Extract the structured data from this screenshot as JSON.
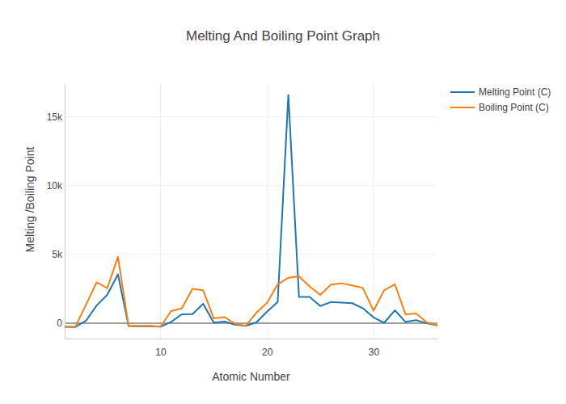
{
  "chart_data": {
    "type": "line",
    "title": "Melting And Boiling Point Graph",
    "x_label": "Atomic Number",
    "y_label": "Melting /Boiling Point",
    "x": [
      1,
      2,
      3,
      4,
      5,
      6,
      7,
      8,
      9,
      10,
      11,
      12,
      13,
      14,
      15,
      16,
      17,
      18,
      19,
      20,
      21,
      22,
      23,
      24,
      25,
      26,
      27,
      28,
      29,
      30,
      31,
      32,
      33,
      34,
      35,
      36
    ],
    "series": [
      {
        "name": "Melting Point (C)",
        "color": "#1f77b4",
        "values": [
          -259,
          -272,
          180,
          1287,
          2075,
          3550,
          -210,
          -218,
          -220,
          -249,
          98,
          650,
          660,
          1414,
          44,
          115,
          -101,
          -189,
          63,
          842,
          1541,
          16600,
          1910,
          1907,
          1246,
          1538,
          1495,
          1455,
          1085,
          420,
          30,
          938,
          100,
          221,
          -7,
          -157
        ]
      },
      {
        "name": "Boiling Point (C)",
        "color": "#ff7f0e",
        "values": [
          -253,
          -269,
          1342,
          2970,
          2550,
          4827,
          -196,
          -183,
          -188,
          -246,
          883,
          1090,
          2500,
          2400,
          350,
          445,
          -34,
          -186,
          759,
          1484,
          2830,
          3300,
          3407,
          2671,
          2061,
          2800,
          2900,
          2750,
          2562,
          907,
          2400,
          2833,
          650,
          700,
          59,
          -153
        ]
      }
    ],
    "xlim": [
      1,
      36
    ],
    "ylim": [
      -1115,
      17445
    ],
    "xticks": [
      10,
      20,
      30
    ],
    "yticks": [
      0,
      {
        "value": 5000,
        "label": "5k"
      },
      {
        "value": 10000,
        "label": "10k"
      },
      {
        "value": 15000,
        "label": "15k"
      }
    ],
    "grid": true,
    "legend": "right"
  }
}
